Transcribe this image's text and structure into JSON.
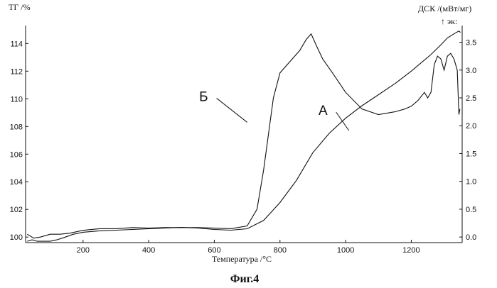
{
  "chart_data": {
    "type": "line",
    "caption": "Фиг.4",
    "xlabel": "Температура /°С",
    "ylabel_left": "ТГ /%",
    "ylabel_right": "ДСК /(мВт/мг)",
    "right_axis_note": "↑ эк:",
    "x_ticks": [
      200,
      400,
      600,
      800,
      1000,
      1200
    ],
    "xlim": [
      25,
      1355
    ],
    "y_left_ticks": [
      100,
      102,
      104,
      106,
      108,
      110,
      112,
      114
    ],
    "ylim_left": [
      99.6,
      115.3
    ],
    "y_right_ticks": [
      0.0,
      0.5,
      1.0,
      1.5,
      2.0,
      2.5,
      3.0,
      3.5
    ],
    "y_right_tick_labels": [
      "0.0",
      "0.5",
      "1.0",
      "1.5",
      "2.0",
      "2.5",
      "3.0",
      "3.5"
    ],
    "ylim_right": [
      -0.1,
      3.8
    ],
    "grid": false,
    "series": [
      {
        "name": "А",
        "axis": "left",
        "x": [
          30,
          45,
          60,
          80,
          100,
          120,
          140,
          170,
          200,
          250,
          300,
          350,
          400,
          450,
          500,
          550,
          600,
          650,
          700,
          750,
          800,
          850,
          900,
          950,
          1000,
          1050,
          1100,
          1150,
          1200,
          1230,
          1260,
          1290,
          1310,
          1330,
          1345,
          1350
        ],
        "y": [
          99.7,
          99.8,
          99.7,
          99.7,
          99.7,
          99.8,
          99.95,
          100.2,
          100.35,
          100.45,
          100.5,
          100.55,
          100.6,
          100.65,
          100.7,
          100.65,
          100.55,
          100.5,
          100.6,
          101.2,
          102.5,
          104.1,
          106.1,
          107.5,
          108.6,
          109.5,
          110.3,
          111.1,
          112.0,
          112.6,
          113.2,
          113.9,
          114.4,
          114.7,
          114.9,
          114.8
        ]
      },
      {
        "name": "Б",
        "axis": "right",
        "x": [
          30,
          50,
          70,
          100,
          130,
          160,
          200,
          250,
          300,
          350,
          400,
          450,
          500,
          550,
          600,
          650,
          700,
          730,
          750,
          780,
          800,
          830,
          860,
          880,
          895,
          910,
          930,
          960,
          1000,
          1050,
          1100,
          1150,
          1180,
          1200,
          1220,
          1240,
          1250,
          1260,
          1270,
          1280,
          1290,
          1300,
          1310,
          1320,
          1330,
          1340,
          1345,
          1348
        ],
        "y": [
          0.05,
          -0.02,
          0.0,
          0.05,
          0.05,
          0.07,
          0.12,
          0.15,
          0.15,
          0.17,
          0.16,
          0.17,
          0.17,
          0.17,
          0.16,
          0.15,
          0.2,
          0.5,
          1.2,
          2.5,
          2.95,
          3.15,
          3.35,
          3.55,
          3.65,
          3.45,
          3.2,
          2.95,
          2.6,
          2.3,
          2.2,
          2.25,
          2.3,
          2.35,
          2.45,
          2.6,
          2.5,
          2.6,
          3.1,
          3.25,
          3.2,
          3.0,
          3.25,
          3.3,
          3.2,
          3.0,
          2.2,
          2.3
        ]
      }
    ],
    "annotations": [
      {
        "text": "Б",
        "x": 700,
        "y_left": 108.3
      },
      {
        "text": "А",
        "x": 1010,
        "y_left": 107.7
      }
    ]
  }
}
